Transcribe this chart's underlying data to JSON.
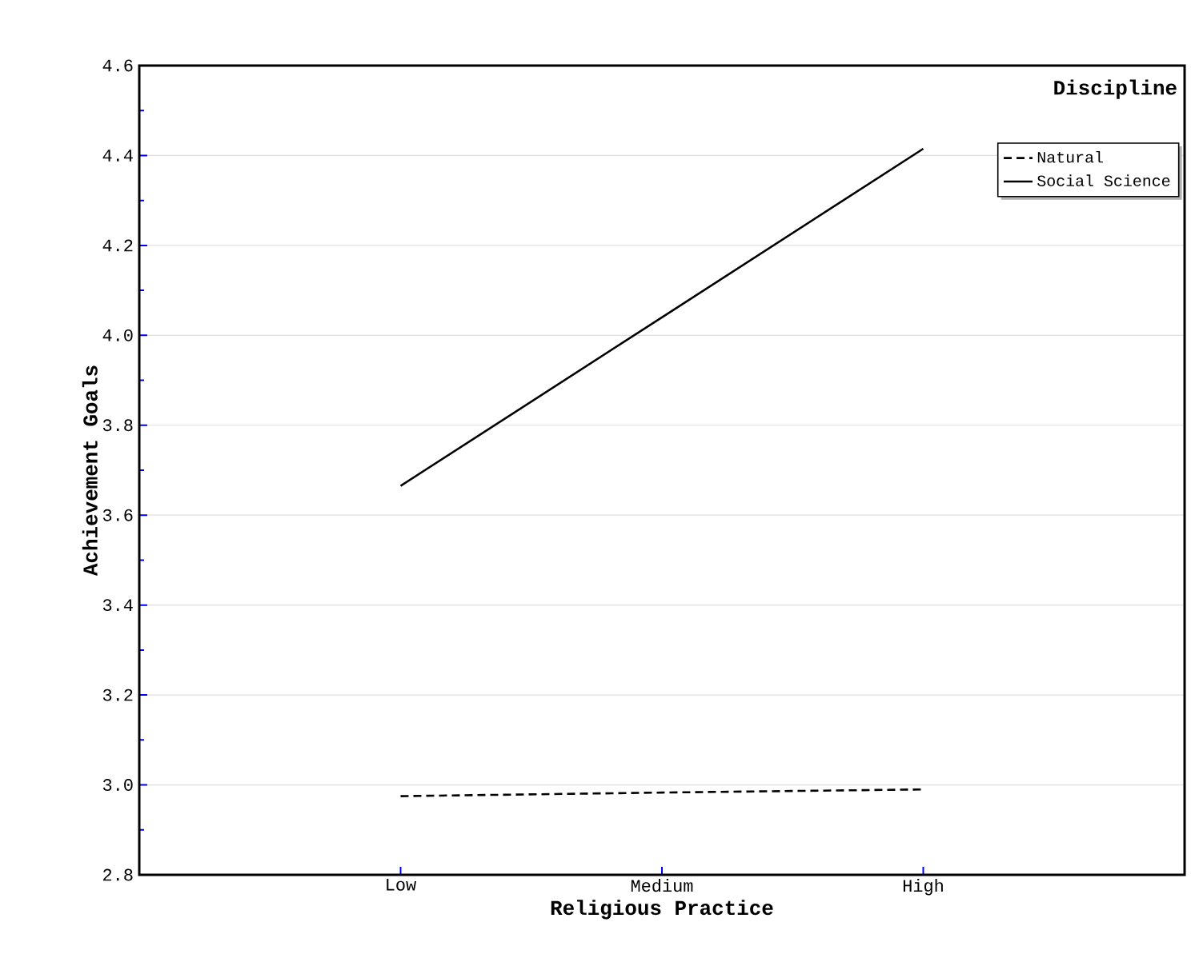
{
  "chart_data": {
    "type": "line",
    "xlabel": "Religious Practice",
    "ylabel": "Achievement Goals",
    "legend_title": "Discipline",
    "categories": [
      "Low",
      "Medium",
      "High"
    ],
    "series": [
      {
        "name": "Natural",
        "color": "#000000",
        "line_style": "dashed",
        "values": [
          2.975,
          2.983,
          2.99
        ]
      },
      {
        "name": "Social Science",
        "color": "#000000",
        "line_style": "solid",
        "values": [
          3.665,
          4.04,
          4.415
        ]
      }
    ],
    "ylim": [
      2.8,
      4.6
    ],
    "yticks": [
      2.8,
      {
        "value": 3.0,
        "label": "3.0"
      },
      3.2,
      3.4,
      3.6,
      3.8,
      {
        "value": 4.0,
        "label": "4.0"
      },
      4.2,
      4.4,
      4.6
    ],
    "grid": "y",
    "legend": "top right",
    "marker": "none"
  }
}
